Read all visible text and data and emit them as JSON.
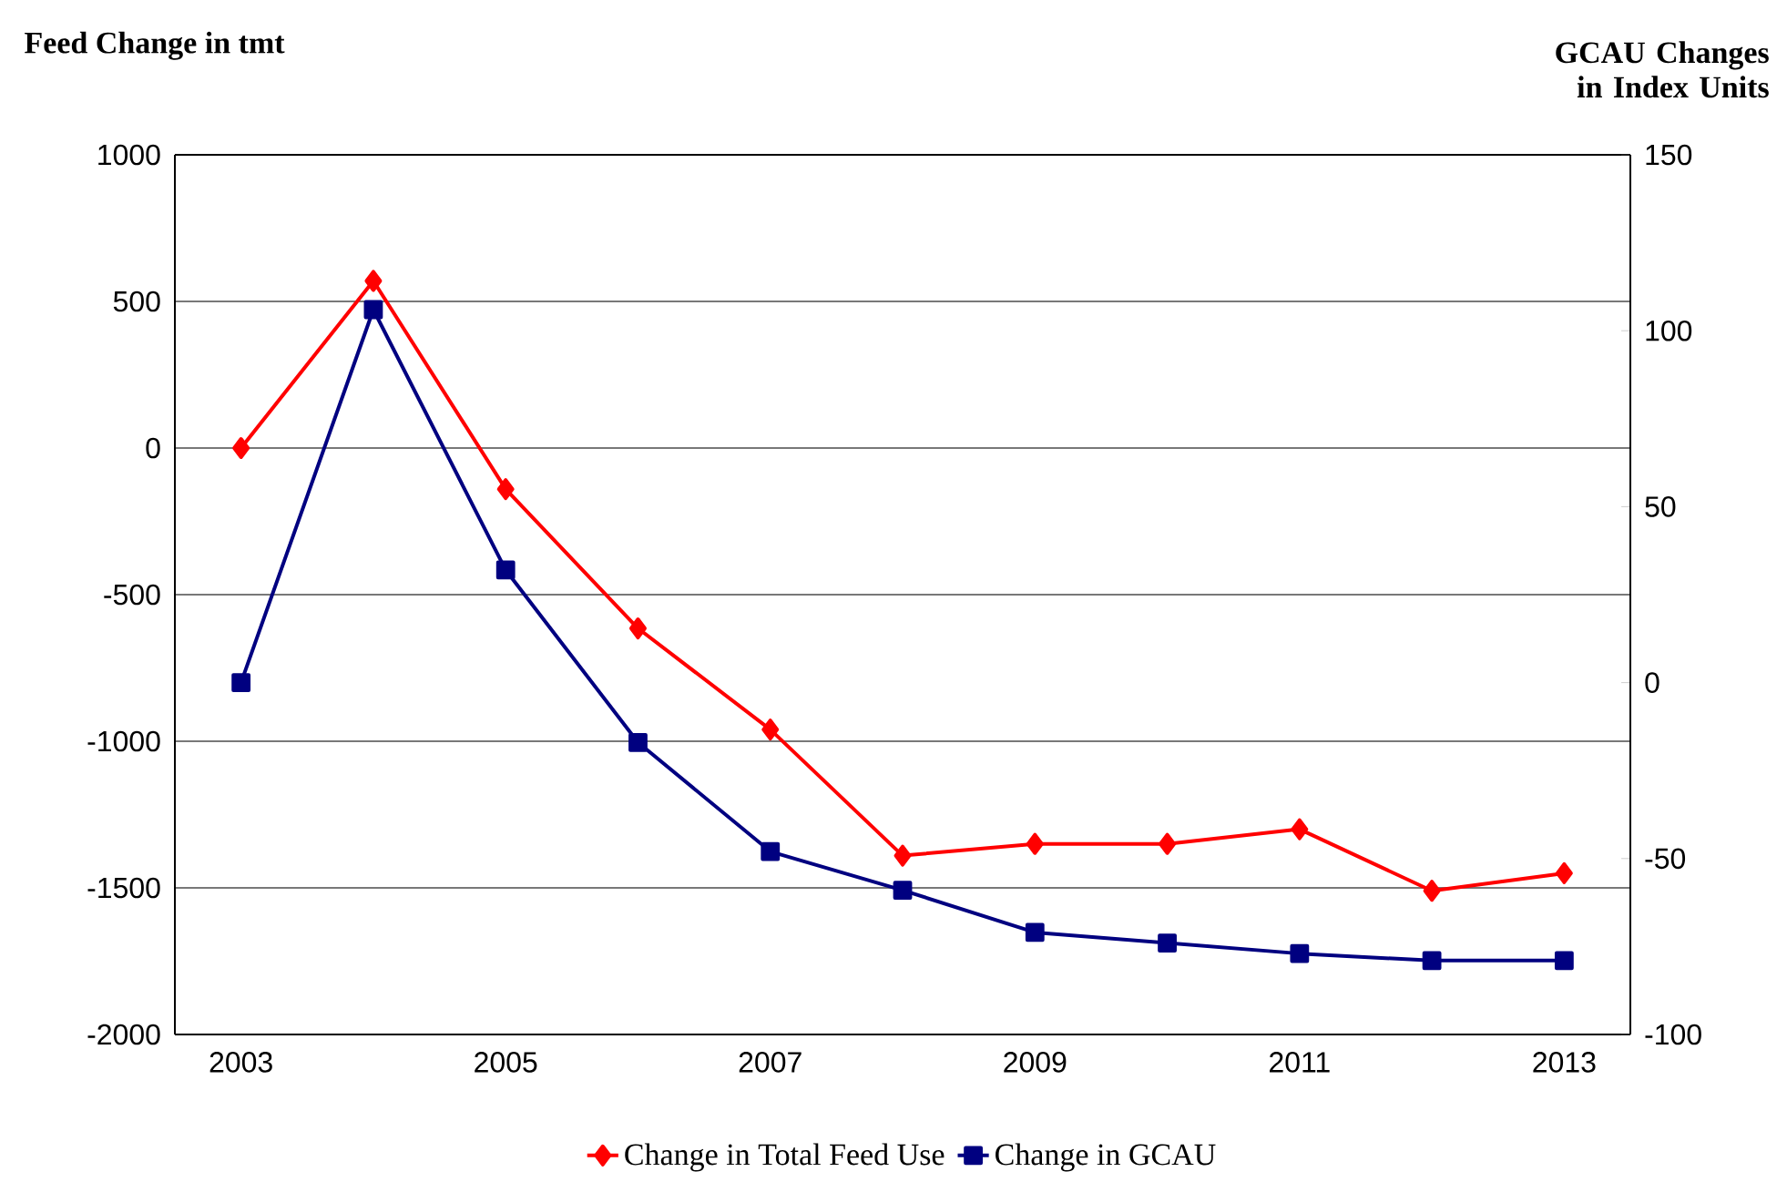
{
  "chart_data": {
    "type": "line",
    "ylabel": "Feed Change in tmt",
    "y2label": "GCAU Changes in Index Units",
    "x": [
      2003,
      2004,
      2005,
      2006,
      2007,
      2008,
      2009,
      2010,
      2011,
      2012,
      2013
    ],
    "xlim": [
      2002.5,
      2013.5
    ],
    "xticks": [
      2003,
      2005,
      2007,
      2009,
      2011,
      2013
    ],
    "ylim": [
      -2000,
      1000
    ],
    "yticks": [
      -2000,
      -1500,
      -1000,
      -500,
      0,
      500,
      1000
    ],
    "y2lim": [
      -100,
      150
    ],
    "y2ticks": [
      -100,
      -50,
      0,
      50,
      100,
      150
    ],
    "grid": "y",
    "legend": "bottom",
    "line_style": "solid",
    "series": [
      {
        "name": "Change in Total Feed Use",
        "color": "#ff0000",
        "marker": "diamond",
        "values": [
          0,
          570,
          -140,
          -615,
          -960,
          -1390,
          -1350,
          -1350,
          -1300,
          -1510,
          -1450
        ]
      },
      {
        "name": "Change in GCAU",
        "color": "#000080",
        "marker": "square",
        "axis": "y2",
        "values": [
          0,
          106,
          32,
          -17,
          -48,
          -59,
          -71,
          -74,
          -77,
          -79,
          -79
        ]
      }
    ]
  }
}
